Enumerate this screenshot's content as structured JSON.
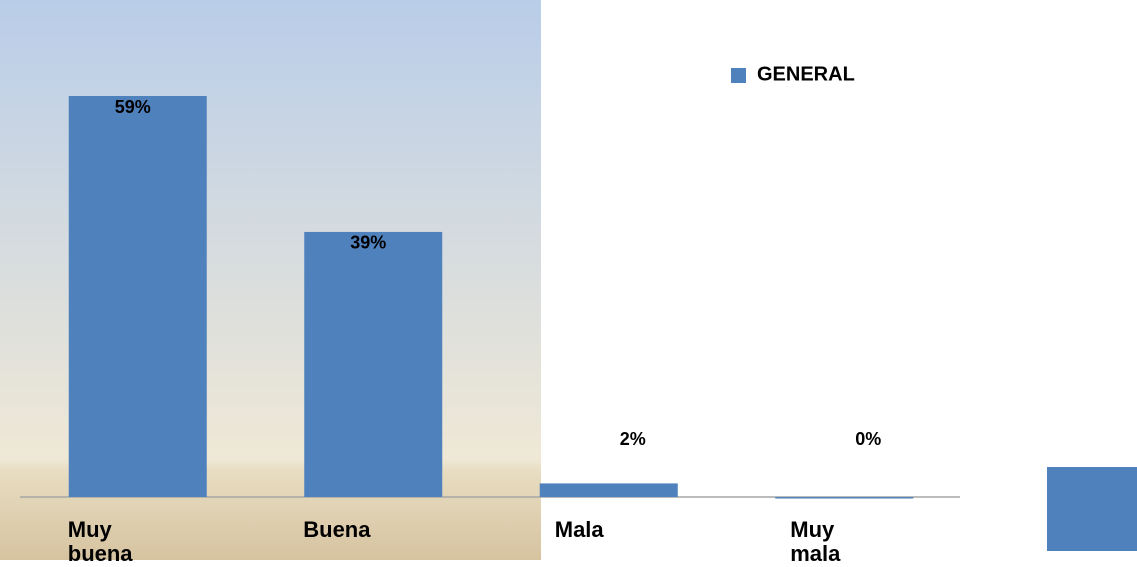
{
  "chart_data": {
    "type": "bar",
    "categories": [
      "Muy buena",
      "Buena",
      "Mala",
      "Muy mala"
    ],
    "series": [
      {
        "name": "GENERAL",
        "color": "#4f81bd",
        "values": [
          59,
          39,
          2,
          0
        ],
        "value_labels": [
          "59%",
          "39%",
          "2%",
          "0%"
        ]
      }
    ]
  }
}
